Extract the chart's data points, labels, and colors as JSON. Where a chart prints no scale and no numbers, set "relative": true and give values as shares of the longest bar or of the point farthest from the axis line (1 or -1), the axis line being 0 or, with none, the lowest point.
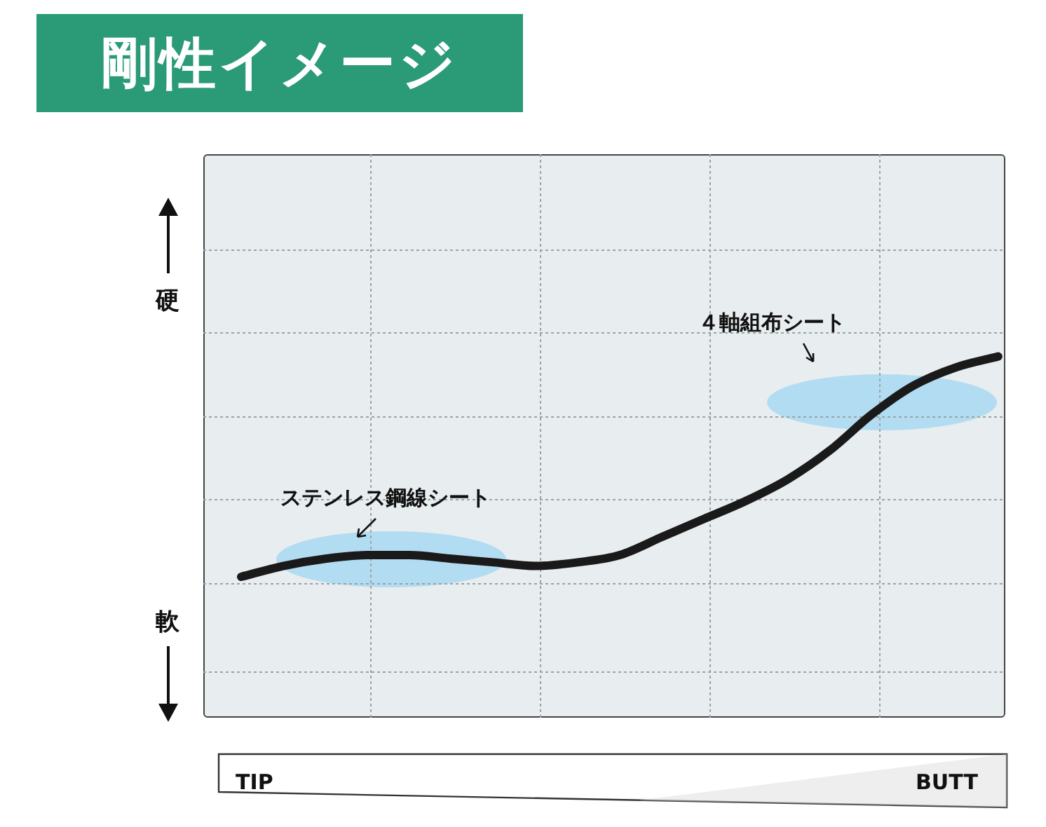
{
  "chart_data": {
    "type": "line",
    "title": "剛性イメージ",
    "relative": true,
    "grid": true,
    "marker": "none",
    "line_style": "solid",
    "legend": false,
    "categories": [
      null,
      null,
      null,
      null,
      null,
      null,
      null,
      null,
      null,
      null,
      null,
      null,
      null,
      null,
      null,
      null,
      null,
      null,
      null
    ],
    "series": [
      {
        "color": "#1a1a1a",
        "values": [
          0.39,
          0.42,
          0.44,
          0.45,
          0.45,
          0.44,
          0.43,
          0.42,
          0.43,
          0.45,
          0.5,
          0.55,
          0.6,
          0.66,
          0.74,
          0.84,
          0.92,
          0.97,
          1
        ]
      }
    ],
    "annotations": [
      "ステンレス鋼線シート",
      "４軸組布シート",
      "硬",
      "軟",
      "TIP",
      "BUTT"
    ]
  }
}
